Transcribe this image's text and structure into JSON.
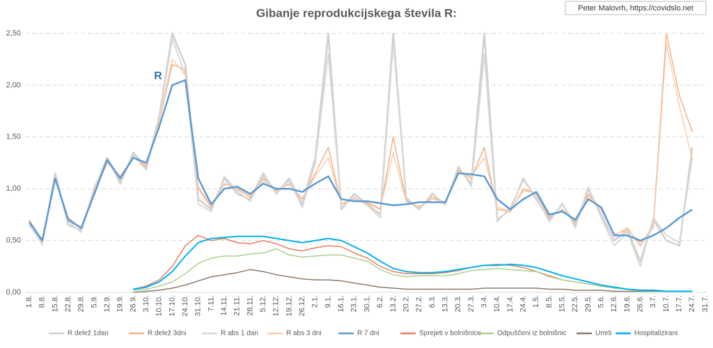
{
  "chart_data": {
    "type": "line",
    "title": "Gibanje reprodukcijskega števila R:",
    "annotations": {
      "series_label": "R",
      "author": "Peter Malovrh, https://covidslo.net"
    },
    "categories": [
      "1.8.",
      "8.8.",
      "15.8.",
      "22.8.",
      "29.8.",
      "5.9.",
      "12.9.",
      "19.9.",
      "26.9.",
      "3.10.",
      "10.10.",
      "17.10.",
      "24.10.",
      "31.10.",
      "7.11.",
      "14.11.",
      "21.11.",
      "28.11.",
      "5.12.",
      "12.12.",
      "19.12.",
      "26.12.",
      "2.1.",
      "9.1.",
      "16.1.",
      "23.1.",
      "30.1.",
      "6.2.",
      "13.2.",
      "20.2.",
      "27.2.",
      "6.3.",
      "13.3.",
      "20.3.",
      "27.3.",
      "3.4.",
      "10.4.",
      "17.4.",
      "24.4.",
      "1.5.",
      "8.5.",
      "15.5.",
      "22.5.",
      "29.5.",
      "5.6.",
      "12.6.",
      "19.6.",
      "26.6.",
      "3.7.",
      "10.7.",
      "17.7.",
      "24.7.",
      "31.7."
    ],
    "ylim": [
      0,
      2.5
    ],
    "yticks": [
      {
        "value": 0,
        "label": "0,00"
      },
      {
        "value": 0.5,
        "label": "0,50"
      },
      {
        "value": 1,
        "label": "1,00"
      },
      {
        "value": 1.5,
        "label": "1,50"
      },
      {
        "value": 2,
        "label": "2,00"
      },
      {
        "value": 2.5,
        "label": "2,50"
      }
    ],
    "grid": true,
    "legend": "bottom",
    "series": [
      {
        "name": "R delež 1dan",
        "color": "#cfcfcf",
        "width": 2.5,
        "values": [
          0.65,
          0.48,
          1.15,
          0.65,
          0.6,
          1.0,
          1.3,
          1.05,
          1.35,
          1.2,
          1.7,
          2.5,
          2.2,
          0.9,
          0.8,
          1.1,
          0.95,
          0.9,
          1.15,
          0.95,
          1.1,
          0.85,
          1.3,
          2.5,
          0.8,
          0.95,
          0.85,
          0.75,
          2.5,
          0.9,
          0.8,
          0.95,
          0.85,
          1.2,
          1.05,
          2.5,
          0.7,
          0.8,
          1.1,
          0.9,
          0.7,
          0.85,
          0.65,
          1.0,
          0.75,
          0.5,
          0.6,
          0.3,
          0.7,
          0.5,
          0.45,
          1.4,
          null
        ]
      },
      {
        "name": "R delež 3dni",
        "color": "#f4b183",
        "width": 1.5,
        "values": [
          0.7,
          0.5,
          1.1,
          0.72,
          0.62,
          0.98,
          1.25,
          1.12,
          1.3,
          1.22,
          1.65,
          2.2,
          2.15,
          1.0,
          0.82,
          1.05,
          1.0,
          0.92,
          1.1,
          0.98,
          1.05,
          0.9,
          1.15,
          1.4,
          0.85,
          0.9,
          0.86,
          0.8,
          1.5,
          0.88,
          0.82,
          0.92,
          0.86,
          1.18,
          1.1,
          1.4,
          0.8,
          0.78,
          1.0,
          0.95,
          0.72,
          0.8,
          0.68,
          0.95,
          0.8,
          0.55,
          0.62,
          0.45,
          0.65,
          2.5,
          1.9,
          1.55,
          null
        ]
      },
      {
        "name": "R abs 1 dan",
        "color": "#d9d9d9",
        "width": 2,
        "values": [
          0.66,
          0.46,
          1.12,
          0.68,
          0.58,
          1.02,
          1.27,
          1.08,
          1.32,
          1.18,
          1.68,
          2.45,
          2.1,
          0.85,
          0.78,
          1.12,
          0.98,
          0.88,
          1.12,
          0.96,
          1.08,
          0.82,
          1.25,
          2.3,
          0.82,
          0.92,
          0.84,
          0.72,
          2.4,
          0.92,
          0.8,
          0.96,
          0.84,
          1.22,
          1.02,
          2.3,
          0.68,
          0.82,
          1.08,
          0.92,
          0.68,
          0.86,
          0.62,
          1.02,
          0.72,
          0.45,
          0.58,
          0.25,
          0.72,
          0.55,
          0.48,
          1.3,
          null
        ]
      },
      {
        "name": "R abs 3 dni",
        "color": "#f8cbad",
        "width": 1.5,
        "values": [
          0.69,
          0.51,
          1.09,
          0.7,
          0.63,
          0.99,
          1.26,
          1.1,
          1.31,
          1.23,
          1.66,
          2.25,
          2.1,
          1.02,
          0.84,
          1.04,
          1.01,
          0.93,
          1.08,
          0.99,
          1.04,
          0.91,
          1.12,
          1.3,
          0.86,
          0.9,
          0.87,
          0.81,
          1.35,
          0.87,
          0.83,
          0.9,
          0.87,
          1.16,
          1.12,
          1.3,
          0.82,
          0.79,
          0.98,
          0.96,
          0.74,
          0.79,
          0.69,
          0.93,
          0.81,
          0.56,
          0.6,
          0.48,
          0.62,
          2.4,
          1.8,
          1.28,
          null
        ]
      },
      {
        "name": "R 7 dni",
        "color": "#5b9bd5",
        "width": 2.5,
        "values": [
          0.68,
          0.5,
          1.1,
          0.7,
          0.62,
          0.95,
          1.28,
          1.1,
          1.3,
          1.25,
          1.6,
          2.0,
          2.05,
          1.1,
          0.85,
          1.0,
          1.02,
          0.95,
          1.05,
          1.0,
          1.0,
          0.97,
          1.05,
          1.12,
          0.9,
          0.88,
          0.88,
          0.86,
          0.84,
          0.85,
          0.87,
          0.87,
          0.87,
          1.15,
          1.14,
          1.12,
          0.9,
          0.8,
          0.9,
          0.97,
          0.75,
          0.78,
          0.7,
          0.9,
          0.82,
          0.55,
          0.55,
          0.5,
          0.55,
          0.62,
          0.72,
          0.8,
          null
        ]
      },
      {
        "name": "Sprejeti v bolnišnice",
        "color": "#e97c5f",
        "width": 1.5,
        "values": [
          null,
          null,
          null,
          null,
          null,
          null,
          null,
          null,
          0.03,
          0.06,
          0.12,
          0.25,
          0.45,
          0.55,
          0.5,
          0.52,
          0.48,
          0.47,
          0.5,
          0.47,
          0.42,
          0.4,
          0.43,
          0.45,
          0.44,
          0.38,
          0.33,
          0.25,
          0.2,
          0.18,
          0.18,
          0.18,
          0.19,
          0.21,
          0.24,
          0.26,
          0.27,
          0.26,
          0.24,
          0.2,
          0.16,
          0.12,
          0.1,
          0.08,
          0.06,
          0.04,
          0.03,
          0.02,
          0.02,
          0.01,
          0.01,
          0.01,
          null
        ]
      },
      {
        "name": "Odpuščeni iz bolnišnic",
        "color": "#a9d18e",
        "width": 1.5,
        "values": [
          null,
          null,
          null,
          null,
          null,
          null,
          null,
          null,
          0.02,
          0.03,
          0.06,
          0.1,
          0.18,
          0.28,
          0.33,
          0.35,
          0.35,
          0.37,
          0.38,
          0.42,
          0.36,
          0.34,
          0.35,
          0.36,
          0.36,
          0.33,
          0.3,
          0.22,
          0.17,
          0.15,
          0.16,
          0.16,
          0.16,
          0.18,
          0.21,
          0.22,
          0.23,
          0.22,
          0.21,
          0.2,
          0.15,
          0.12,
          0.1,
          0.08,
          0.06,
          0.04,
          0.03,
          0.02,
          0.02,
          0.01,
          0.01,
          0.01,
          null
        ]
      },
      {
        "name": "Umrli",
        "color": "#8c7a6b",
        "width": 1.5,
        "values": [
          null,
          null,
          null,
          null,
          null,
          null,
          null,
          null,
          0,
          0.01,
          0.02,
          0.04,
          0.07,
          0.11,
          0.15,
          0.17,
          0.19,
          0.22,
          0.2,
          0.17,
          0.15,
          0.13,
          0.12,
          0.12,
          0.11,
          0.09,
          0.07,
          0.05,
          0.04,
          0.03,
          0.03,
          0.03,
          0.03,
          0.03,
          0.03,
          0.04,
          0.04,
          0.04,
          0.04,
          0.04,
          0.03,
          0.03,
          0.02,
          0.02,
          0.02,
          0.01,
          0.01,
          0.01,
          0.01,
          0.01,
          0.01,
          0.01,
          null
        ]
      },
      {
        "name": "Hospitalizirani",
        "color": "#00b0f0",
        "width": 2,
        "values": [
          null,
          null,
          null,
          null,
          null,
          null,
          null,
          null,
          0.03,
          0.05,
          0.1,
          0.2,
          0.35,
          0.48,
          0.52,
          0.53,
          0.54,
          0.54,
          0.54,
          0.52,
          0.5,
          0.48,
          0.5,
          0.52,
          0.5,
          0.44,
          0.38,
          0.3,
          0.23,
          0.2,
          0.19,
          0.19,
          0.2,
          0.22,
          0.24,
          0.26,
          0.26,
          0.27,
          0.26,
          0.24,
          0.2,
          0.16,
          0.13,
          0.1,
          0.07,
          0.05,
          0.03,
          0.02,
          0.02,
          0.01,
          0.01,
          0.01,
          null
        ]
      }
    ]
  }
}
